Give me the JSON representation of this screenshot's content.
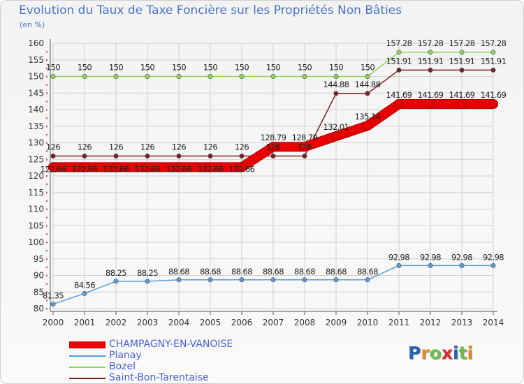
{
  "title": "Evolution du Taux de Taxe Foncière sur les Propriétés Non Bâties",
  "unit": "(en %)",
  "logo": {
    "text": "Proxiti",
    "letters": [
      "P",
      "r",
      "o",
      "x",
      "i",
      "t",
      "i"
    ],
    "colors": [
      "#2b63b0",
      "#e98a1e",
      "#6cc04a",
      "#d9302c",
      "#2b63b0",
      "#6cc04a",
      "#e98a1e"
    ]
  },
  "colors": {
    "title": "#4a74c6",
    "axis": "#555555",
    "grid": "#d0d0d0",
    "ytick": "#cc2222"
  },
  "chart_data": {
    "type": "line",
    "title": "Evolution du Taux de Taxe Foncière sur les Propriétés Non Bâties",
    "ylabel": "(en %)",
    "xlabel": "",
    "categories": [
      "2000",
      "2001",
      "2002",
      "2003",
      "2004",
      "2005",
      "2006",
      "2007",
      "2008",
      "2009",
      "2010",
      "2011",
      "2012",
      "2013",
      "2014"
    ],
    "ylim": [
      80,
      160
    ],
    "yticks": [
      80,
      85,
      90,
      95,
      100,
      105,
      110,
      115,
      120,
      125,
      130,
      135,
      140,
      145,
      150,
      155,
      160
    ],
    "grid": true,
    "legend_position": "bottom-left",
    "series": [
      {
        "name": "CHAMPAGNY-EN-VANOISE",
        "color": "#e80000",
        "values": [
          122.66,
          122.66,
          122.66,
          122.66,
          122.66,
          122.66,
          122.66,
          128.79,
          128.79,
          132.01,
          135.14,
          141.69,
          141.69,
          141.69,
          141.69
        ],
        "labels": [
          "122.66",
          "122.66",
          "122.66",
          "122.66",
          "122.66",
          "122.66",
          "122.66",
          "128.79",
          "128.79",
          "132.01",
          "135.14",
          "141.69",
          "141.69",
          "141.69",
          "141.69"
        ]
      },
      {
        "name": "Planay",
        "color": "#5a9bd4",
        "values": [
          81.35,
          84.56,
          88.25,
          88.25,
          88.68,
          88.68,
          88.68,
          88.68,
          88.68,
          88.68,
          88.68,
          92.98,
          92.98,
          92.98,
          92.98
        ],
        "labels": [
          "81.35",
          "84.56",
          "88.25",
          "88.25",
          "88.68",
          "88.68",
          "88.68",
          "88.68",
          "88.68",
          "88.68",
          "88.68",
          "92.98",
          "92.98",
          "92.98",
          "92.98"
        ]
      },
      {
        "name": "Bozel",
        "color": "#8fd45c",
        "values": [
          150,
          150,
          150,
          150,
          150,
          150,
          150,
          150,
          150,
          150,
          150,
          157.28,
          157.28,
          157.28,
          157.28
        ],
        "labels": [
          "150",
          "150",
          "150",
          "150",
          "150",
          "150",
          "150",
          "150",
          "150",
          "150",
          "150",
          "157.28",
          "157.28",
          "157.28",
          "157.28"
        ]
      },
      {
        "name": "Saint-Bon-Tarentaise",
        "color": "#7a2020",
        "values": [
          126,
          126,
          126,
          126,
          126,
          126,
          126,
          126,
          126,
          144.88,
          144.88,
          151.91,
          151.91,
          151.91,
          151.91
        ],
        "labels": [
          "126",
          "126",
          "126",
          "126",
          "126",
          "126",
          "126",
          "126",
          "126",
          "144.88",
          "144.88",
          "151.91",
          "151.91",
          "151.91",
          "151.91"
        ]
      }
    ]
  }
}
